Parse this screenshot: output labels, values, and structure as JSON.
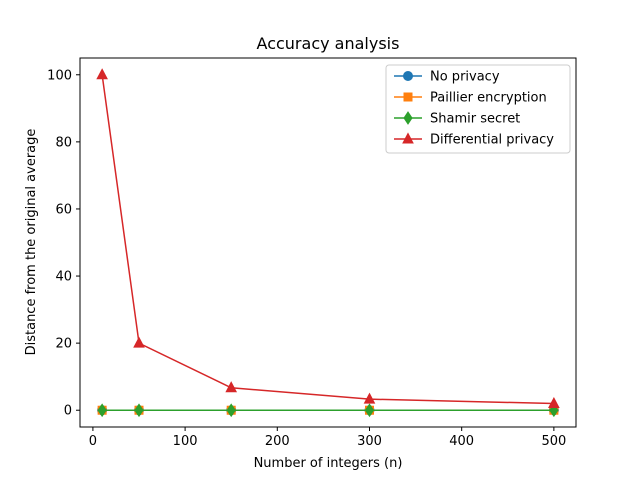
{
  "chart_data": {
    "type": "line",
    "title": "Accuracy analysis",
    "xlabel": "Number of integers (n)",
    "ylabel": "Distance from the original average",
    "x": [
      10,
      50,
      150,
      300,
      500
    ],
    "xlim": [
      -14,
      524
    ],
    "ylim": [
      -5,
      105
    ],
    "xticks": [
      0,
      100,
      200,
      300,
      400,
      500
    ],
    "yticks": [
      0,
      20,
      40,
      60,
      80,
      100
    ],
    "grid": false,
    "legend_position": "top-right",
    "series": [
      {
        "name": "No privacy",
        "values": [
          0,
          0,
          0,
          0,
          0
        ],
        "color": "#1f77b4",
        "marker": "circle"
      },
      {
        "name": "Paillier encryption",
        "values": [
          0,
          0,
          0,
          0,
          0
        ],
        "color": "#ff7f0e",
        "marker": "square"
      },
      {
        "name": "Shamir secret",
        "values": [
          0,
          0,
          0,
          0,
          0
        ],
        "color": "#2ca02c",
        "marker": "diamond"
      },
      {
        "name": "Differential privacy",
        "values": [
          100,
          20,
          6.7,
          3.3,
          2
        ],
        "color": "#d62728",
        "marker": "triangle"
      }
    ]
  }
}
